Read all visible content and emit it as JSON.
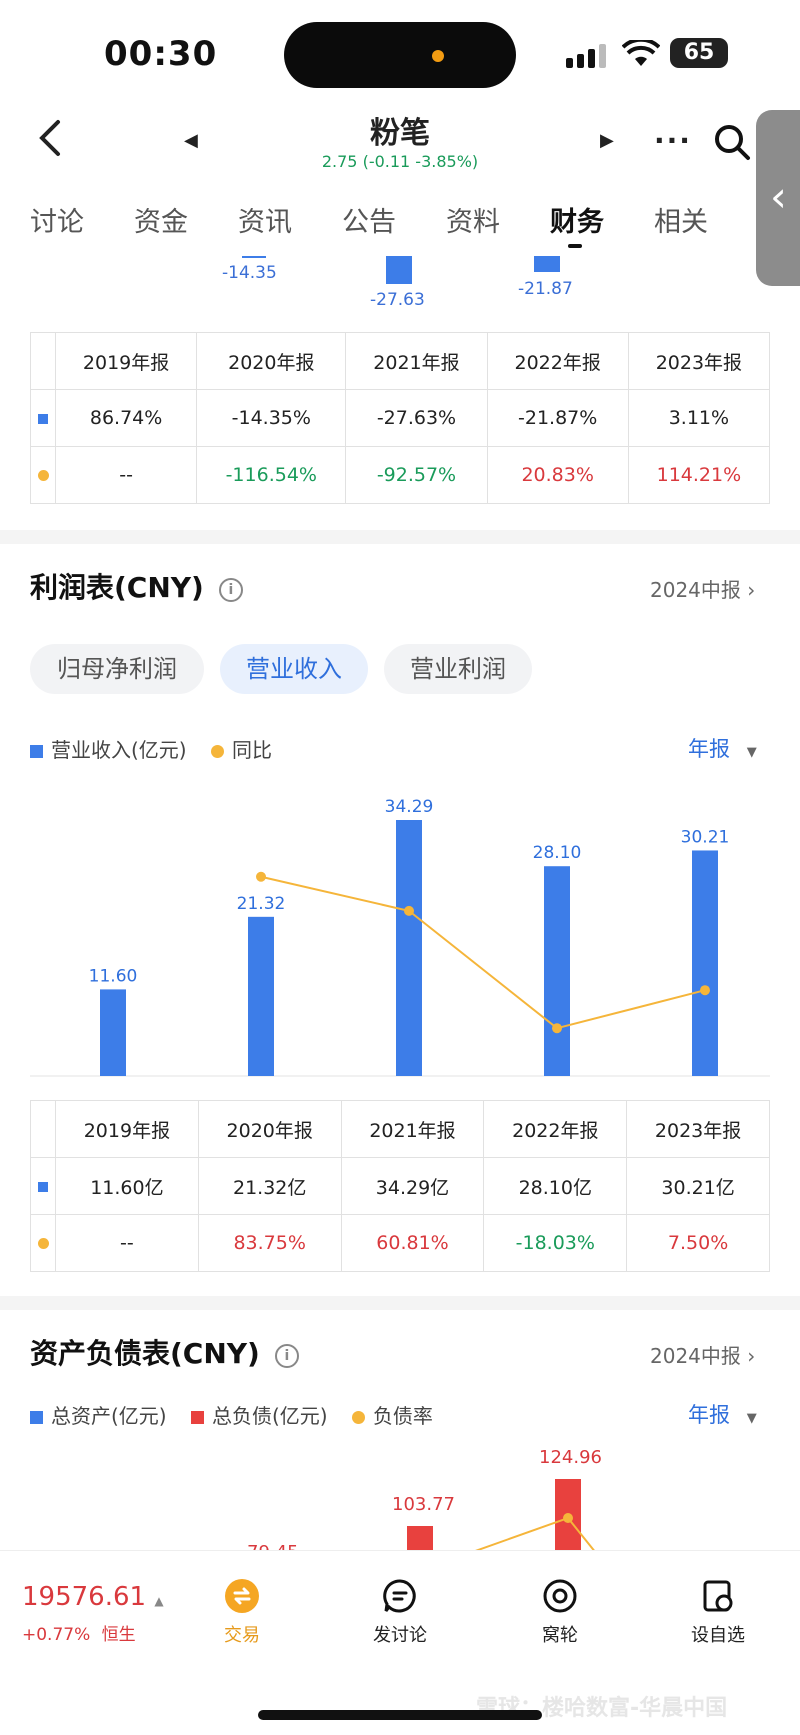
{
  "status_bar": {
    "time": "00:30",
    "battery": "65"
  },
  "header": {
    "title": "粉笔",
    "quote": "2.75 (-0.11 -3.85%)"
  },
  "tabs": [
    "讨论",
    "资金",
    "资讯",
    "公告",
    "资料",
    "财务",
    "相关"
  ],
  "active_tab": "财务",
  "top_chart_labels": [
    "-14.35",
    "-27.63",
    "-21.87"
  ],
  "growth_table": {
    "years": [
      "2019年报",
      "2020年报",
      "2021年报",
      "2022年报",
      "2023年报"
    ],
    "row1": [
      "86.74%",
      "-14.35%",
      "-27.63%",
      "-21.87%",
      "3.11%"
    ],
    "row2": [
      "--",
      "-116.54%",
      "-92.57%",
      "20.83%",
      "114.21%"
    ]
  },
  "income": {
    "title": "利润表(CNY)",
    "period": "2024中报",
    "pills": [
      "归母净利润",
      "营业收入",
      "营业利润"
    ],
    "active_pill": "营业收入",
    "legend": [
      "营业收入(亿元)",
      "同比"
    ],
    "year_select": "年报",
    "chart_data": {
      "type": "bar",
      "categories": [
        "2019年报",
        "2020年报",
        "2021年报",
        "2022年报",
        "2023年报"
      ],
      "series": [
        {
          "name": "营业收入(亿元)",
          "values": [
            11.6,
            21.32,
            34.29,
            28.1,
            30.21
          ]
        },
        {
          "name": "同比",
          "values": [
            null,
            83.75,
            60.81,
            -18.03,
            7.5
          ]
        }
      ],
      "bar_labels": [
        "11.60",
        "21.32",
        "34.29",
        "28.10",
        "30.21"
      ]
    },
    "table": {
      "years": [
        "2019年报",
        "2020年报",
        "2021年报",
        "2022年报",
        "2023年报"
      ],
      "row1": [
        "11.60亿",
        "21.32亿",
        "34.29亿",
        "28.10亿",
        "30.21亿"
      ],
      "row2": [
        "--",
        "83.75%",
        "60.81%",
        "-18.03%",
        "7.50%"
      ]
    }
  },
  "balance": {
    "title": "资产负债表(CNY)",
    "period": "2024中报",
    "legend": [
      "总资产(亿元)",
      "总负债(亿元)",
      "负债率"
    ],
    "year_select": "年报",
    "visible_labels": [
      "103.77",
      "124.96"
    ],
    "partial_label": "79.45"
  },
  "bottom_bar": {
    "index_value": "19576.61",
    "index_change": "+0.77%",
    "index_name": "恒生",
    "items": [
      "交易",
      "发讨论",
      "窝轮",
      "设自选"
    ]
  },
  "colors": {
    "blue": "#3d7de8",
    "orange": "#f5b53a",
    "red": "#e8413e",
    "green": "#1a9b5a"
  },
  "watermark": "雪球：楼哈数富-华晨中国"
}
